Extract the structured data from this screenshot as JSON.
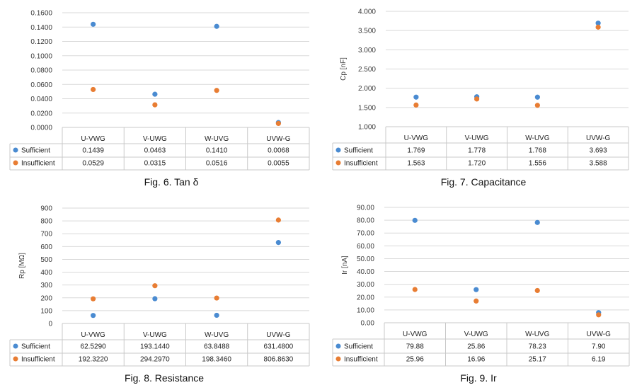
{
  "colors": {
    "sufficient": "#4a8bd1",
    "insufficient": "#e87d33",
    "grid": "#d9d9d9"
  },
  "chart_data": [
    {
      "type": "scatter",
      "caption": "Fig. 6. Tan δ",
      "ylabel": "",
      "categories": [
        "U-VWG",
        "V-UWG",
        "W-UVG",
        "UVW-G"
      ],
      "ylim": [
        0,
        0.16
      ],
      "yticks": [
        "0.0000",
        "0.0200",
        "0.0400",
        "0.0600",
        "0.0800",
        "0.1000",
        "0.1200",
        "0.1400",
        "0.1600"
      ],
      "series": [
        {
          "name": "Sufficient",
          "values": [
            0.1439,
            0.0463,
            0.141,
            0.0068
          ],
          "labels": [
            "0.1439",
            "0.0463",
            "0.1410",
            "0.0068"
          ]
        },
        {
          "name": "Insufficient",
          "values": [
            0.0529,
            0.0315,
            0.0516,
            0.0055
          ],
          "labels": [
            "0.0529",
            "0.0315",
            "0.0516",
            "0.0055"
          ]
        }
      ]
    },
    {
      "type": "scatter",
      "caption": "Fig. 7. Capacitance",
      "ylabel": "Cp [nF]",
      "categories": [
        "U-VWG",
        "V-UWG",
        "W-UVG",
        "UVW-G"
      ],
      "ylim": [
        1.0,
        4.0
      ],
      "yticks": [
        "1.000",
        "1.500",
        "2.000",
        "2.500",
        "3.000",
        "3.500",
        "4.000"
      ],
      "series": [
        {
          "name": "Sufficient",
          "values": [
            1.769,
            1.778,
            1.768,
            3.693
          ],
          "labels": [
            "1.769",
            "1.778",
            "1.768",
            "3.693"
          ]
        },
        {
          "name": "Insufficient",
          "values": [
            1.563,
            1.72,
            1.556,
            3.588
          ],
          "labels": [
            "1.563",
            "1.720",
            "1.556",
            "3.588"
          ]
        }
      ]
    },
    {
      "type": "scatter",
      "caption": "Fig. 8. Resistance",
      "ylabel": "Rp [MΩ]",
      "categories": [
        "U-VWG",
        "V-UWG",
        "W-UVG",
        "UVW-G"
      ],
      "ylim": [
        0,
        900
      ],
      "yticks": [
        "0",
        "100",
        "200",
        "300",
        "400",
        "500",
        "600",
        "700",
        "800",
        "900"
      ],
      "series": [
        {
          "name": "Sufficient",
          "values": [
            62.529,
            193.144,
            63.8488,
            631.48
          ],
          "labels": [
            "62.5290",
            "193.1440",
            "63.8488",
            "631.4800"
          ]
        },
        {
          "name": "Insufficient",
          "values": [
            192.322,
            294.297,
            198.346,
            806.863
          ],
          "labels": [
            "192.3220",
            "294.2970",
            "198.3460",
            "806.8630"
          ]
        }
      ]
    },
    {
      "type": "scatter",
      "caption": "Fig. 9. Ir",
      "ylabel": "Ir [nA]",
      "categories": [
        "U-VWG",
        "V-UWG",
        "W-UVG",
        "UVW-G"
      ],
      "ylim": [
        0,
        90
      ],
      "yticks": [
        "0.00",
        "10.00",
        "20.00",
        "30.00",
        "40.00",
        "50.00",
        "60.00",
        "70.00",
        "80.00",
        "90.00"
      ],
      "series": [
        {
          "name": "Sufficient",
          "values": [
            79.88,
            25.86,
            78.23,
            7.9
          ],
          "labels": [
            "79.88",
            "25.86",
            "78.23",
            "7.90"
          ]
        },
        {
          "name": "Insufficient",
          "values": [
            25.96,
            16.96,
            25.17,
            6.19
          ],
          "labels": [
            "25.96",
            "16.96",
            "25.17",
            "6.19"
          ]
        }
      ]
    }
  ]
}
